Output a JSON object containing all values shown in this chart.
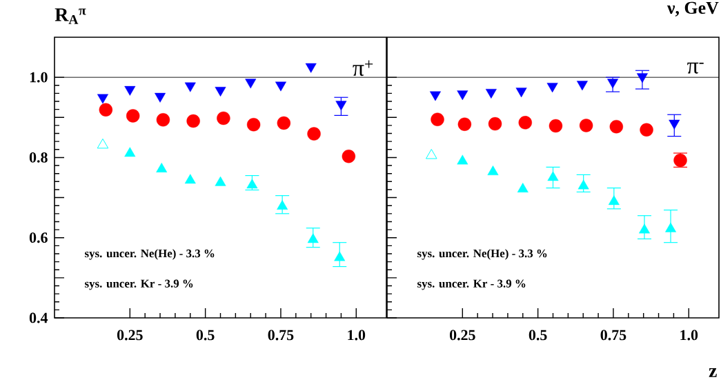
{
  "chart_data": [
    {
      "type": "scatter",
      "ylabel": "R$_{A}$$^{π}$",
      "xlim": [
        0,
        1.1
      ],
      "ylim": [
        0.4,
        1.1
      ],
      "xticks": [
        {
          "value": 0.25,
          "label": "0.25"
        },
        {
          "value": 0.5,
          "label": "0.5"
        },
        {
          "value": 0.75,
          "label": "0.75"
        },
        {
          "value": 1.0,
          "label": "1.0"
        }
      ],
      "yticks": [
        {
          "value": 0.4,
          "label": "0.4"
        },
        {
          "value": 0.5,
          "label": null
        },
        {
          "value": 0.6,
          "label": "0.6"
        },
        {
          "value": 0.7,
          "label": null
        },
        {
          "value": 0.8,
          "label": "0.8"
        },
        {
          "value": 0.9,
          "label": null
        },
        {
          "value": 1.0,
          "label": "1.0"
        }
      ],
      "ref_lines": [
        {
          "axis": "y",
          "value": 1.0,
          "color": "#000000"
        }
      ],
      "annotations": [
        "π$^{+}$",
        "sys. uncer. Ne(He) -  3.3 %",
        "sys. uncer. Kr - 3.9 %"
      ],
      "series": [
        {
          "color": "#0000ff",
          "marker": "triangle-down",
          "x": [
            0.16,
            0.25,
            0.35,
            0.45,
            0.55,
            0.65,
            0.75,
            0.85,
            0.95
          ],
          "values": [
            0.95,
            0.97,
            0.953,
            0.979,
            0.968,
            0.988,
            0.981,
            1.027,
            0.933
          ],
          "errors": [
            null,
            null,
            null,
            null,
            null,
            null,
            null,
            null,
            [
              0.905,
              0.95
            ]
          ]
        },
        {
          "color": "#ff0000",
          "marker": "circle",
          "x": [
            0.17,
            0.26,
            0.36,
            0.46,
            0.56,
            0.66,
            0.76,
            0.86,
            0.975
          ],
          "values": [
            0.919,
            0.904,
            0.894,
            0.891,
            0.898,
            0.882,
            0.886,
            0.859,
            0.803
          ]
        },
        {
          "color": "#00ffff",
          "marker": "triangle-open",
          "x": [
            0.16
          ],
          "values": [
            0.831
          ]
        },
        {
          "color": "#00ffff",
          "marker": "triangle",
          "x": [
            0.25,
            0.355,
            0.45,
            0.55,
            0.655,
            0.755,
            0.857,
            0.945
          ],
          "values": [
            0.81,
            0.771,
            0.743,
            0.737,
            0.731,
            0.678,
            0.595,
            0.55
          ],
          "errors": [
            null,
            null,
            null,
            null,
            [
              0.719,
              0.755
            ],
            [
              0.66,
              0.705
            ],
            [
              0.576,
              0.624
            ],
            [
              0.528,
              0.588
            ]
          ]
        }
      ]
    },
    {
      "type": "scatter",
      "xlabel": "z",
      "xlim": [
        0,
        1.1
      ],
      "ylim": [
        0.4,
        1.1
      ],
      "tick_labels": "x",
      "xticks": [
        {
          "value": 0.25,
          "label": "0.25"
        },
        {
          "value": 0.5,
          "label": "0.5"
        },
        {
          "value": 0.75,
          "label": "0.75"
        },
        {
          "value": 1.0,
          "label": "1.0"
        }
      ],
      "yticks": [
        {
          "value": 0.4,
          "label": null
        },
        {
          "value": 0.5,
          "label": null
        },
        {
          "value": 0.6,
          "label": null
        },
        {
          "value": 0.7,
          "label": null
        },
        {
          "value": 0.8,
          "label": null
        },
        {
          "value": 0.9,
          "label": null
        },
        {
          "value": 1.0,
          "label": null
        }
      ],
      "ref_lines": [
        {
          "axis": "y",
          "value": 1.0,
          "color": "#000000"
        }
      ],
      "annotations": [
        "π$^{-}$",
        "sys. uncer. Ne(He) -  3.3 %",
        "sys. uncer. Kr - 3.9 %",
        "ν, GeV"
      ],
      "series": [
        {
          "color": "#0000ff",
          "marker": "triangle-down",
          "x": [
            0.16,
            0.25,
            0.345,
            0.445,
            0.548,
            0.647,
            0.748,
            0.846,
            0.952
          ],
          "values": [
            0.957,
            0.959,
            0.963,
            0.966,
            0.978,
            0.983,
            0.988,
            1.002,
            0.886
          ],
          "errors": [
            null,
            null,
            null,
            null,
            null,
            null,
            [
              0.964,
              1.0
            ],
            [
              0.971,
              1.017
            ],
            [
              0.853,
              0.907
            ]
          ]
        },
        {
          "color": "#ff0000",
          "marker": "circle",
          "x": [
            0.167,
            0.257,
            0.358,
            0.458,
            0.559,
            0.66,
            0.76,
            0.86,
            0.972
          ],
          "values": [
            0.895,
            0.883,
            0.884,
            0.887,
            0.879,
            0.88,
            0.877,
            0.869,
            0.793
          ],
          "errors": [
            null,
            null,
            null,
            null,
            null,
            null,
            null,
            null,
            [
              0.776,
              0.811
            ]
          ]
        },
        {
          "color": "#00ffff",
          "marker": "triangle-open",
          "x": [
            0.147
          ],
          "values": [
            0.805
          ]
        },
        {
          "color": "#00ffff",
          "marker": "triangle",
          "x": [
            0.25,
            0.351,
            0.45,
            0.55,
            0.651,
            0.752,
            0.853,
            0.94
          ],
          "values": [
            0.791,
            0.764,
            0.721,
            0.75,
            0.729,
            0.69,
            0.619,
            0.622
          ],
          "errors": [
            null,
            null,
            null,
            [
              0.724,
              0.776
            ],
            [
              0.714,
              0.757
            ],
            [
              0.672,
              0.724
            ],
            [
              0.597,
              0.655
            ],
            [
              0.588,
              0.669
            ]
          ]
        }
      ]
    }
  ]
}
